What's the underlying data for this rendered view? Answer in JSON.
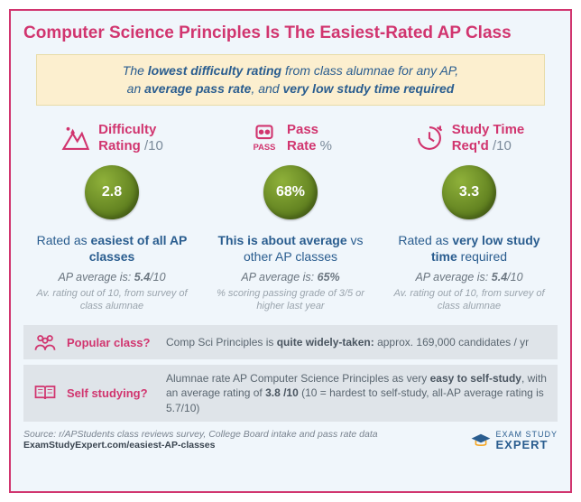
{
  "colors": {
    "accent": "#d1356f",
    "blue_text": "#2a5d8f",
    "gray_text": "#6b7680",
    "light_gray": "#9aa4ad",
    "card_bg": "#f0f6fb",
    "subtitle_bg": "#fcefcf",
    "inforow_bg": "#dfe4e9",
    "bubble_green_light": "#8fb13a",
    "bubble_green_dark": "#5d7d1e"
  },
  "title": "Computer Science Principles Is The Easiest-Rated AP Class",
  "subtitle_html": "The <strong>lowest difficulty rating</strong> from class alumnae for any AP,<br>an <strong>average pass rate</strong>, and <strong>very low study time required</strong>",
  "metrics": [
    {
      "icon": "mountain",
      "label": "Difficulty<br>Rating",
      "unit": "/10",
      "value": "2.8",
      "desc_html": "Rated as <strong>easiest of all AP classes</strong>",
      "avg_html": "AP average is: <strong>5.4</strong>/10",
      "note": "Av. rating out of 10, from survey of class alumnae"
    },
    {
      "icon": "pass-badge",
      "label": "Pass<br>Rate",
      "unit": "%",
      "value": "68%",
      "desc_html": "<strong>This is about average</strong> vs other AP classes",
      "avg_html": "AP average is: <strong>65%</strong>",
      "note": "% scoring passing grade of 3/5 or higher last year"
    },
    {
      "icon": "clock",
      "label": "Study Time<br>Req'd",
      "unit": "/10",
      "value": "3.3",
      "desc_html": "Rated as <strong>very low study time</strong> required",
      "avg_html": "AP average is: <strong>5.4</strong>/10",
      "note": "Av. rating out of 10, from survey of class alumnae"
    }
  ],
  "inforows": [
    {
      "icon": "people",
      "label": "Popular class?",
      "text_html": "Comp Sci Principles is <strong>quite widely-taken:</strong> approx. 169,000 candidates / yr"
    },
    {
      "icon": "book",
      "label": "Self studying?",
      "text_html": "Alumnae rate AP Computer Science Principles as very <strong>easy to self-study</strong>, with an average rating of <strong>3.8 /10</strong> (10 = hardest to self-study, all-AP average rating is 5.7/10)"
    }
  ],
  "footer": {
    "source": "Source: r/APStudents class reviews survey, College Board intake and pass rate data",
    "url": "ExamStudyExpert.com/easiest-AP-classes",
    "logo_top": "EXAM STUDY",
    "logo_bottom": "EXPERT"
  }
}
